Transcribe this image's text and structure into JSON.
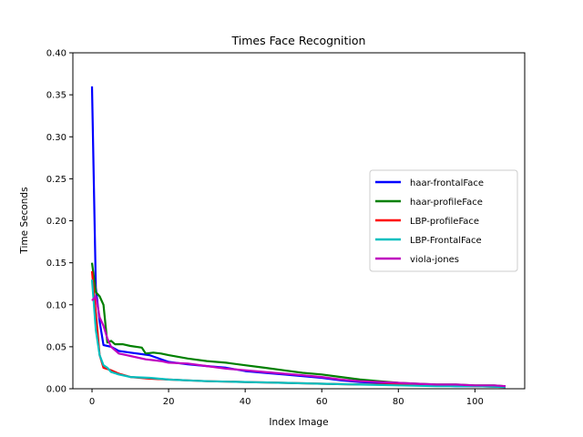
{
  "chart_data": {
    "type": "line",
    "title": "Times Face Recognition",
    "xlabel": "Index Image",
    "ylabel": "Time Seconds",
    "xlim": [
      -5,
      113
    ],
    "ylim": [
      0,
      0.4
    ],
    "xticks": [
      0,
      20,
      40,
      60,
      80,
      100
    ],
    "yticks": [
      0.0,
      0.05,
      0.1,
      0.15,
      0.2,
      0.25,
      0.3,
      0.35,
      0.4
    ],
    "ytick_labels": [
      "0.00",
      "0.05",
      "0.10",
      "0.15",
      "0.20",
      "0.25",
      "0.30",
      "0.35",
      "0.40"
    ],
    "grid": false,
    "legend_position": "center-right",
    "series": [
      {
        "name": "haar-frontalFace",
        "color": "#0000ff",
        "x": [
          0,
          1,
          2,
          3,
          5,
          7,
          10,
          15,
          20,
          25,
          30,
          35,
          40,
          45,
          50,
          55,
          60,
          65,
          70,
          75,
          80,
          85,
          90,
          95,
          100,
          105,
          108
        ],
        "y": [
          0.36,
          0.12,
          0.08,
          0.052,
          0.05,
          0.045,
          0.043,
          0.04,
          0.032,
          0.029,
          0.027,
          0.025,
          0.021,
          0.019,
          0.017,
          0.015,
          0.013,
          0.01,
          0.008,
          0.007,
          0.005,
          0.004,
          0.004,
          0.003,
          0.003,
          0.003,
          0.002
        ]
      },
      {
        "name": "haar-profileFace",
        "color": "#008000",
        "x": [
          0,
          1,
          2,
          3,
          4,
          5,
          6,
          8,
          10,
          13,
          14,
          16,
          18,
          20,
          25,
          30,
          35,
          40,
          45,
          50,
          55,
          60,
          65,
          70,
          75,
          80,
          85,
          90,
          95,
          100,
          105,
          108
        ],
        "y": [
          0.15,
          0.115,
          0.11,
          0.1,
          0.055,
          0.057,
          0.053,
          0.053,
          0.051,
          0.049,
          0.042,
          0.043,
          0.042,
          0.04,
          0.036,
          0.033,
          0.031,
          0.028,
          0.025,
          0.022,
          0.019,
          0.017,
          0.014,
          0.011,
          0.009,
          0.007,
          0.006,
          0.005,
          0.005,
          0.004,
          0.004,
          0.003
        ]
      },
      {
        "name": "LBP-profileFace",
        "color": "#ff0000",
        "x": [
          0,
          1,
          2,
          3,
          5,
          7,
          10,
          15,
          20,
          25,
          30,
          40,
          50,
          60,
          70,
          80,
          90,
          100,
          108
        ],
        "y": [
          0.14,
          0.09,
          0.04,
          0.025,
          0.022,
          0.018,
          0.014,
          0.012,
          0.011,
          0.01,
          0.009,
          0.008,
          0.007,
          0.006,
          0.005,
          0.005,
          0.004,
          0.003,
          0.002
        ]
      },
      {
        "name": "LBP-FrontalFace",
        "color": "#00bfbf",
        "x": [
          0,
          1,
          2,
          3,
          4,
          5,
          7,
          10,
          15,
          20,
          25,
          30,
          40,
          50,
          60,
          70,
          80,
          90,
          100,
          108
        ],
        "y": [
          0.13,
          0.07,
          0.04,
          0.028,
          0.025,
          0.02,
          0.017,
          0.014,
          0.013,
          0.011,
          0.01,
          0.009,
          0.008,
          0.007,
          0.006,
          0.005,
          0.004,
          0.003,
          0.003,
          0.002
        ]
      },
      {
        "name": "viola-jones",
        "color": "#bf00bf",
        "x": [
          0,
          1,
          2,
          3,
          4,
          5,
          7,
          9,
          10,
          14,
          16,
          18,
          20,
          25,
          30,
          35,
          40,
          45,
          50,
          55,
          60,
          65,
          70,
          75,
          80,
          85,
          90,
          95,
          100,
          105,
          108
        ],
        "y": [
          0.105,
          0.11,
          0.085,
          0.075,
          0.06,
          0.05,
          0.042,
          0.04,
          0.039,
          0.035,
          0.034,
          0.033,
          0.031,
          0.03,
          0.027,
          0.024,
          0.022,
          0.02,
          0.018,
          0.016,
          0.014,
          0.011,
          0.009,
          0.008,
          0.007,
          0.006,
          0.005,
          0.005,
          0.004,
          0.004,
          0.003
        ]
      }
    ]
  }
}
